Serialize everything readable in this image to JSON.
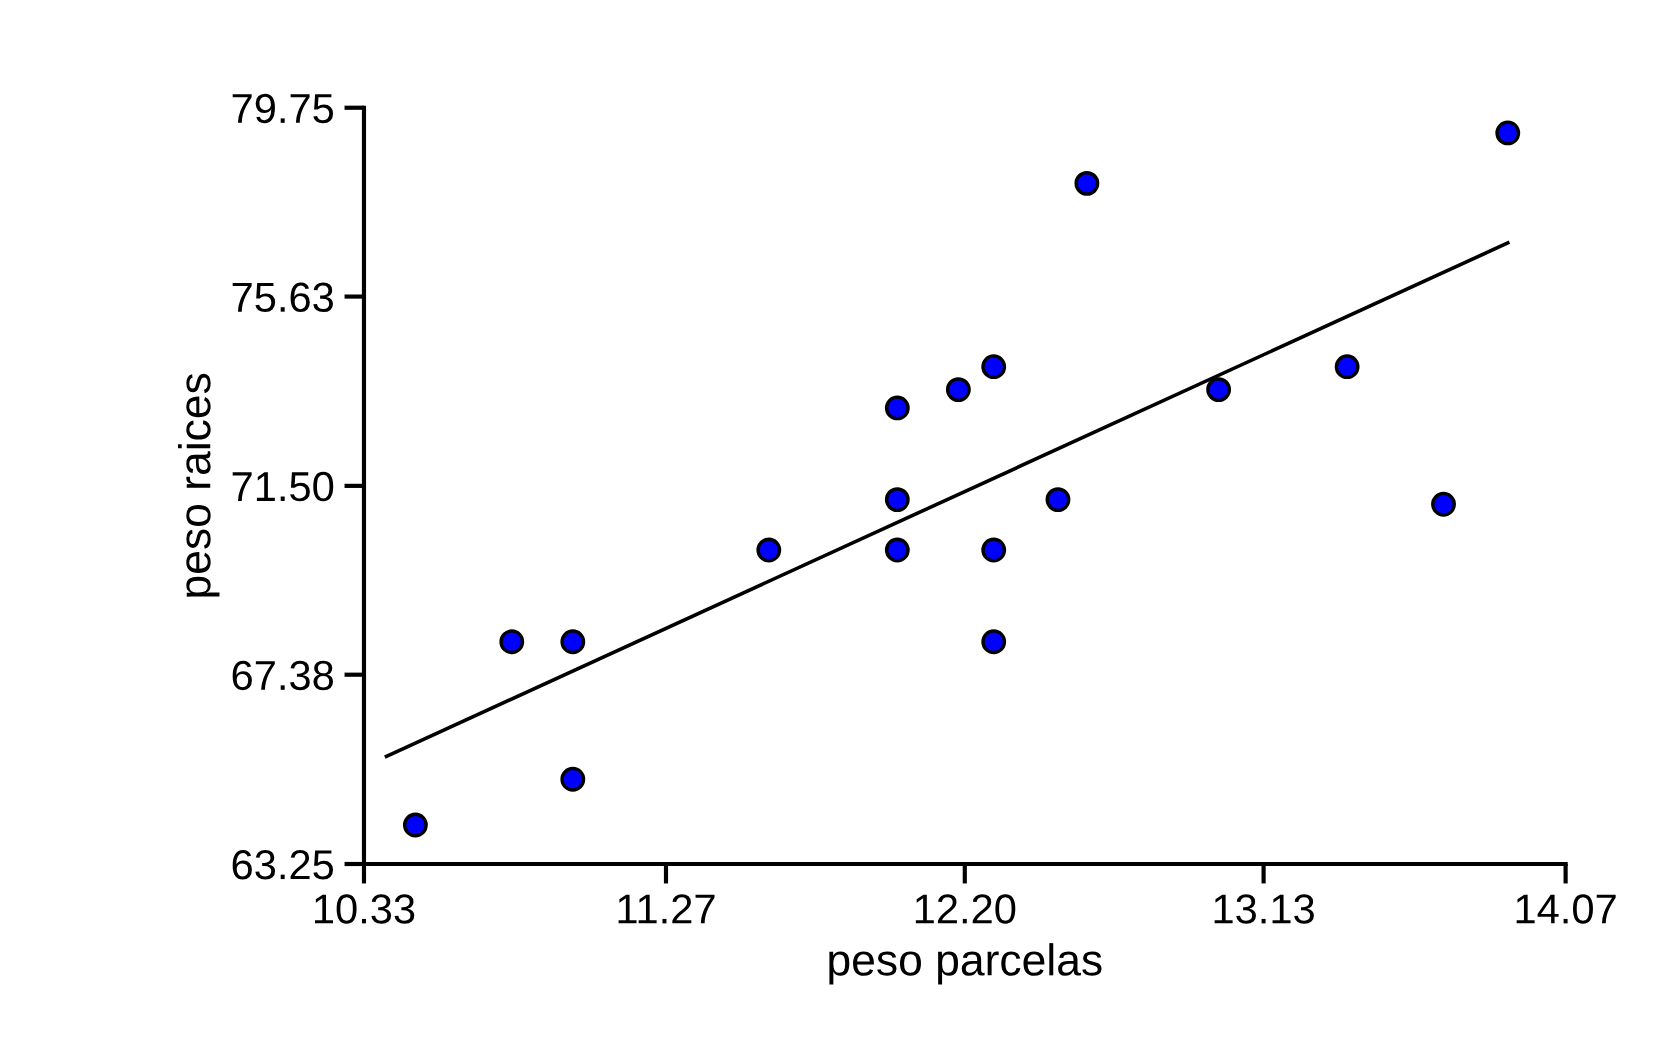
{
  "chart_data": {
    "type": "scatter",
    "xlabel": "peso parcelas",
    "ylabel": "peso raices",
    "xlim": [
      10.33,
      14.07
    ],
    "ylim": [
      63.25,
      79.75
    ],
    "xticks": [
      10.33,
      11.27,
      {
        "value": 12.2,
        "label": "12.20"
      },
      13.13,
      14.07
    ],
    "yticks": [
      63.25,
      67.38,
      {
        "value": 71.5,
        "label": "71.50"
      },
      75.63,
      79.75
    ],
    "grid": false,
    "series": [
      {
        "marker": "circle",
        "color": "#0000ff",
        "x": [
          10.49,
          10.79,
          10.98,
          10.98,
          11.59,
          11.99,
          11.99,
          11.99,
          12.18,
          12.29,
          12.29,
          12.29,
          12.49,
          12.58,
          12.99,
          13.39,
          13.69,
          13.89
        ],
        "values": [
          64.1,
          68.1,
          68.1,
          65.1,
          70.1,
          70.1,
          71.2,
          73.2,
          73.6,
          74.1,
          70.1,
          68.1,
          71.2,
          78.1,
          73.6,
          74.1,
          71.1,
          79.2
        ]
      },
      {
        "type": "line",
        "marker": "none",
        "color": "#000000",
        "line_style": "solid",
        "x": [
          10.4,
          13.89
        ],
        "values": [
          65.6,
          76.8
        ]
      }
    ]
  }
}
